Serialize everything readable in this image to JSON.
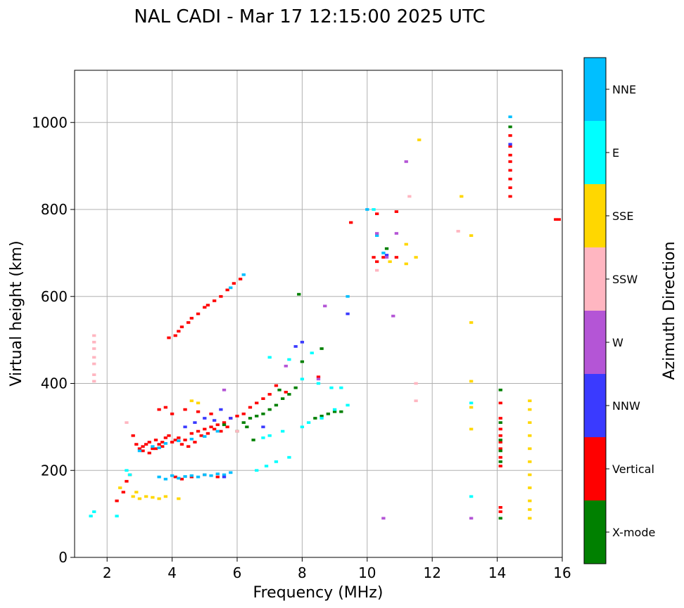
{
  "chart_data": {
    "type": "scatter",
    "title": "NAL CADI - Mar 17 12:15:00 2025 UTC",
    "xlabel": "Frequency (MHz)",
    "ylabel": "Virtual height (km)",
    "xlim": [
      1,
      16
    ],
    "ylim": [
      0,
      1120
    ],
    "xticks": [
      2,
      4,
      6,
      8,
      10,
      12,
      14,
      16
    ],
    "yticks": [
      0,
      200,
      400,
      600,
      800,
      1000
    ],
    "grid": true,
    "colorbar": {
      "label": "Azimuth Direction",
      "categories": [
        {
          "name": "X-mode",
          "color": "#008000"
        },
        {
          "name": "Vertical",
          "color": "#ff0000"
        },
        {
          "name": "NNW",
          "color": "#3a3aff"
        },
        {
          "name": "W",
          "color": "#b455d6"
        },
        {
          "name": "SSW",
          "color": "#ffb6c1"
        },
        {
          "name": "SSE",
          "color": "#ffd700"
        },
        {
          "name": "E",
          "color": "#00ffff"
        },
        {
          "name": "NNE",
          "color": "#00bfff"
        }
      ]
    },
    "cell_size": {
      "df": 0.05,
      "dh": 6
    },
    "series": [
      {
        "name": "Vertical",
        "points": [
          [
            3.0,
            250
          ],
          [
            3.1,
            255
          ],
          [
            3.2,
            260
          ],
          [
            3.3,
            265
          ],
          [
            3.4,
            250
          ],
          [
            3.5,
            270
          ],
          [
            3.6,
            260
          ],
          [
            3.7,
            255
          ],
          [
            3.8,
            275
          ],
          [
            3.9,
            280
          ],
          [
            4.0,
            265
          ],
          [
            4.1,
            270
          ],
          [
            4.2,
            275
          ],
          [
            4.4,
            270
          ],
          [
            4.6,
            285
          ],
          [
            4.8,
            290
          ],
          [
            5.0,
            295
          ],
          [
            5.2,
            300
          ],
          [
            5.4,
            305
          ],
          [
            5.6,
            310
          ],
          [
            5.8,
            320
          ],
          [
            6.0,
            325
          ],
          [
            6.2,
            330
          ],
          [
            6.4,
            345
          ],
          [
            6.6,
            355
          ],
          [
            6.8,
            365
          ],
          [
            7.0,
            375
          ],
          [
            2.8,
            280
          ],
          [
            2.9,
            260
          ],
          [
            3.1,
            245
          ],
          [
            3.3,
            240
          ],
          [
            3.5,
            250
          ],
          [
            3.7,
            265
          ],
          [
            4.3,
            260
          ],
          [
            4.5,
            255
          ],
          [
            4.7,
            265
          ],
          [
            4.9,
            280
          ],
          [
            5.1,
            285
          ],
          [
            5.3,
            295
          ],
          [
            5.5,
            290
          ],
          [
            5.7,
            300
          ],
          [
            3.6,
            340
          ],
          [
            3.8,
            345
          ],
          [
            4.0,
            330
          ],
          [
            4.4,
            340
          ],
          [
            4.8,
            335
          ],
          [
            5.2,
            330
          ],
          [
            4.2,
            520
          ],
          [
            4.3,
            530
          ],
          [
            4.5,
            540
          ],
          [
            4.6,
            550
          ],
          [
            4.8,
            560
          ],
          [
            5.0,
            575
          ],
          [
            5.1,
            580
          ],
          [
            5.3,
            590
          ],
          [
            5.5,
            600
          ],
          [
            5.7,
            615
          ],
          [
            5.9,
            630
          ],
          [
            6.1,
            640
          ],
          [
            4.1,
            510
          ],
          [
            3.9,
            505
          ],
          [
            2.3,
            130
          ],
          [
            2.5,
            150
          ],
          [
            2.6,
            175
          ],
          [
            2.7,
            190
          ],
          [
            4.1,
            185
          ],
          [
            4.3,
            180
          ],
          [
            4.6,
            185
          ],
          [
            5.0,
            190
          ],
          [
            5.4,
            185
          ],
          [
            14.1,
            105
          ],
          [
            14.1,
            115
          ],
          [
            14.1,
            210
          ],
          [
            14.1,
            230
          ],
          [
            14.1,
            250
          ],
          [
            14.1,
            265
          ],
          [
            14.1,
            280
          ],
          [
            14.1,
            295
          ],
          [
            14.1,
            320
          ],
          [
            14.1,
            355
          ],
          [
            14.4,
            830
          ],
          [
            14.4,
            850
          ],
          [
            14.4,
            870
          ],
          [
            14.4,
            890
          ],
          [
            14.4,
            910
          ],
          [
            14.4,
            925
          ],
          [
            14.4,
            945
          ],
          [
            14.4,
            970
          ],
          [
            15.9,
            777
          ],
          [
            15.8,
            777
          ],
          [
            10.3,
            680
          ],
          [
            10.5,
            690
          ],
          [
            10.9,
            690
          ],
          [
            10.3,
            790
          ],
          [
            10.9,
            795
          ],
          [
            9.5,
            770
          ],
          [
            7.5,
            380
          ],
          [
            7.2,
            395
          ],
          [
            8.5,
            415
          ],
          [
            10.2,
            690
          ]
        ]
      },
      {
        "name": "X-mode",
        "points": [
          [
            6.2,
            310
          ],
          [
            6.4,
            320
          ],
          [
            6.6,
            325
          ],
          [
            6.8,
            330
          ],
          [
            7.0,
            340
          ],
          [
            7.2,
            350
          ],
          [
            7.4,
            365
          ],
          [
            7.6,
            375
          ],
          [
            7.8,
            390
          ],
          [
            6.5,
            270
          ],
          [
            6.0,
            290
          ],
          [
            5.6,
            305
          ],
          [
            8.4,
            320
          ],
          [
            8.6,
            325
          ],
          [
            8.8,
            330
          ],
          [
            9.0,
            335
          ],
          [
            9.2,
            335
          ],
          [
            6.3,
            300
          ],
          [
            7.9,
            605
          ],
          [
            8.0,
            450
          ],
          [
            8.6,
            480
          ],
          [
            7.3,
            385
          ],
          [
            14.1,
            90
          ],
          [
            14.1,
            220
          ],
          [
            14.1,
            245
          ],
          [
            14.1,
            270
          ],
          [
            14.1,
            310
          ],
          [
            14.1,
            385
          ],
          [
            14.4,
            990
          ],
          [
            10.6,
            710
          ]
        ]
      },
      {
        "name": "NNE",
        "points": [
          [
            3.0,
            245
          ],
          [
            3.4,
            255
          ],
          [
            3.6,
            252
          ],
          [
            3.8,
            262
          ],
          [
            4.2,
            268
          ],
          [
            4.6,
            272
          ],
          [
            5.0,
            278
          ],
          [
            5.4,
            290
          ],
          [
            3.6,
            185
          ],
          [
            3.8,
            180
          ],
          [
            4.0,
            188
          ],
          [
            4.2,
            182
          ],
          [
            4.4,
            186
          ],
          [
            4.6,
            188
          ],
          [
            4.8,
            185
          ],
          [
            5.0,
            190
          ],
          [
            5.2,
            188
          ],
          [
            5.4,
            192
          ],
          [
            5.6,
            190
          ],
          [
            5.8,
            195
          ],
          [
            6.2,
            650
          ],
          [
            5.8,
            620
          ],
          [
            10.0,
            800
          ],
          [
            14.4,
            1013
          ],
          [
            10.3,
            740
          ],
          [
            10.5,
            700
          ],
          [
            9.4,
            600
          ]
        ]
      },
      {
        "name": "E",
        "points": [
          [
            1.5,
            95
          ],
          [
            1.6,
            105
          ],
          [
            2.3,
            95
          ],
          [
            2.6,
            200
          ],
          [
            2.7,
            190
          ],
          [
            6.6,
            200
          ],
          [
            6.9,
            210
          ],
          [
            7.2,
            220
          ],
          [
            7.6,
            230
          ],
          [
            8.0,
            300
          ],
          [
            8.2,
            310
          ],
          [
            8.6,
            320
          ],
          [
            9.0,
            340
          ],
          [
            9.4,
            350
          ],
          [
            7.4,
            290
          ],
          [
            7.0,
            280
          ],
          [
            6.8,
            275
          ],
          [
            8.0,
            410
          ],
          [
            8.5,
            400
          ],
          [
            8.9,
            390
          ],
          [
            9.2,
            390
          ],
          [
            10.2,
            800
          ],
          [
            13.2,
            140
          ],
          [
            13.2,
            355
          ],
          [
            8.3,
            470
          ],
          [
            7.6,
            455
          ],
          [
            7.0,
            460
          ]
        ]
      },
      {
        "name": "NNW",
        "points": [
          [
            4.4,
            300
          ],
          [
            4.7,
            310
          ],
          [
            5.0,
            320
          ],
          [
            5.3,
            315
          ],
          [
            5.5,
            340
          ],
          [
            5.8,
            320
          ],
          [
            7.8,
            485
          ],
          [
            8.0,
            495
          ],
          [
            9.4,
            560
          ],
          [
            6.8,
            300
          ],
          [
            14.4,
            950
          ],
          [
            10.6,
            695
          ],
          [
            5.6,
            185
          ]
        ]
      },
      {
        "name": "W",
        "points": [
          [
            5.6,
            385
          ],
          [
            10.3,
            745
          ],
          [
            10.6,
            690
          ],
          [
            10.9,
            745
          ],
          [
            13.2,
            90
          ],
          [
            10.5,
            90
          ],
          [
            11.2,
            910
          ],
          [
            10.8,
            555
          ],
          [
            8.7,
            578
          ],
          [
            7.5,
            440
          ],
          [
            8.5,
            410
          ]
        ]
      },
      {
        "name": "SSW",
        "points": [
          [
            1.6,
            405
          ],
          [
            1.6,
            420
          ],
          [
            1.6,
            445
          ],
          [
            1.6,
            460
          ],
          [
            1.6,
            480
          ],
          [
            1.6,
            495
          ],
          [
            1.6,
            510
          ],
          [
            11.3,
            830
          ],
          [
            12.8,
            750
          ],
          [
            10.3,
            660
          ],
          [
            11.5,
            400
          ],
          [
            11.5,
            360
          ],
          [
            2.6,
            310
          ],
          [
            6.0,
            290
          ]
        ]
      },
      {
        "name": "SSE",
        "points": [
          [
            2.8,
            140
          ],
          [
            3.0,
            135
          ],
          [
            3.2,
            140
          ],
          [
            3.4,
            138
          ],
          [
            3.6,
            135
          ],
          [
            3.8,
            140
          ],
          [
            4.2,
            135
          ],
          [
            2.9,
            150
          ],
          [
            2.4,
            160
          ],
          [
            13.2,
            540
          ],
          [
            13.2,
            405
          ],
          [
            13.2,
            345
          ],
          [
            13.2,
            295
          ],
          [
            13.2,
            740
          ],
          [
            12.9,
            830
          ],
          [
            11.6,
            960
          ],
          [
            11.2,
            720
          ],
          [
            11.2,
            675
          ],
          [
            11.5,
            690
          ],
          [
            10.7,
            680
          ],
          [
            4.6,
            360
          ],
          [
            4.8,
            355
          ],
          [
            15.0,
            90
          ],
          [
            15.0,
            110
          ],
          [
            15.0,
            130
          ],
          [
            15.0,
            160
          ],
          [
            15.0,
            190
          ],
          [
            15.0,
            220
          ],
          [
            15.0,
            250
          ],
          [
            15.0,
            280
          ],
          [
            15.0,
            310
          ],
          [
            15.0,
            340
          ],
          [
            15.0,
            360
          ]
        ]
      }
    ]
  }
}
